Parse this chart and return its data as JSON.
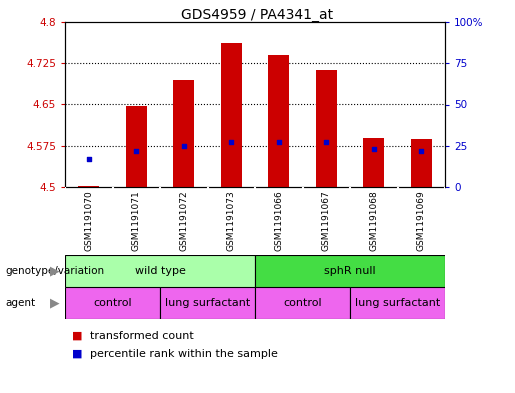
{
  "title": "GDS4959 / PA4341_at",
  "samples": [
    "GSM1191070",
    "GSM1191071",
    "GSM1191072",
    "GSM1191073",
    "GSM1191066",
    "GSM1191067",
    "GSM1191068",
    "GSM1191069"
  ],
  "transformed_counts": [
    4.502,
    4.648,
    4.695,
    4.762,
    4.74,
    4.712,
    4.59,
    4.588
  ],
  "percentile_ranks": [
    17,
    22,
    25,
    27,
    27,
    27,
    23,
    22
  ],
  "ylim_left": [
    4.5,
    4.8
  ],
  "ylim_right": [
    0,
    100
  ],
  "yticks_left": [
    4.5,
    4.575,
    4.65,
    4.725,
    4.8
  ],
  "yticks_right": [
    0,
    25,
    50,
    75,
    100
  ],
  "ytick_labels_left": [
    "4.5",
    "4.575",
    "4.65",
    "4.725",
    "4.8"
  ],
  "ytick_labels_right": [
    "0",
    "25",
    "50",
    "75",
    "100%"
  ],
  "grid_values": [
    4.575,
    4.65,
    4.725
  ],
  "bar_color": "#cc0000",
  "dot_color": "#0000cc",
  "bar_width": 0.45,
  "genotype_groups": [
    {
      "label": "wild type",
      "start": 0,
      "end": 3,
      "color": "#aaffaa"
    },
    {
      "label": "sphR null",
      "start": 4,
      "end": 7,
      "color": "#44dd44"
    }
  ],
  "agent_groups": [
    {
      "label": "control",
      "start": 0,
      "end": 1,
      "color": "#ee66ee"
    },
    {
      "label": "lung surfactant",
      "start": 2,
      "end": 3,
      "color": "#ee66ee"
    },
    {
      "label": "control",
      "start": 4,
      "end": 5,
      "color": "#ee66ee"
    },
    {
      "label": "lung surfactant",
      "start": 6,
      "end": 7,
      "color": "#ee66ee"
    }
  ],
  "legend_items": [
    {
      "label": "transformed count",
      "color": "#cc0000"
    },
    {
      "label": "percentile rank within the sample",
      "color": "#0000cc"
    }
  ],
  "sample_bg_color": "#cccccc",
  "plot_bg": "#ffffff",
  "fig_bg": "#ffffff"
}
